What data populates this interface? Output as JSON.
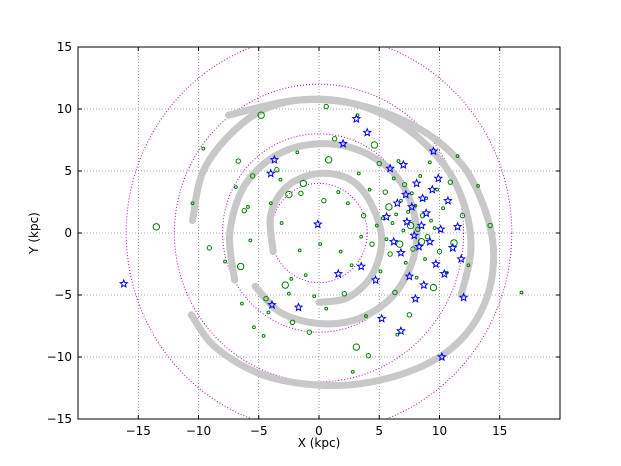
{
  "chart_data": {
    "type": "scatter",
    "title": "",
    "xlabel": "X (kpc)",
    "ylabel": "Y (kpc)",
    "xlim": [
      -20,
      20
    ],
    "ylim": [
      -15,
      15
    ],
    "grid": true,
    "x_ticks": [
      -15,
      -10,
      -5,
      0,
      5,
      10,
      15
    ],
    "y_ticks": [
      -15,
      -10,
      -5,
      0,
      5,
      10,
      15
    ],
    "colors": {
      "circles": "#008000",
      "stars": "#0000ff",
      "arms": "#c8c8c8",
      "dotted_rings": "#c000c0",
      "grid": "#555555"
    },
    "dotted_rings_radius_kpc": [
      4,
      8,
      12,
      16
    ],
    "spiral_arms": [
      [
        [
          -10.5,
          1
        ],
        [
          -9.6,
          5
        ],
        [
          -7,
          8.3
        ],
        [
          -4,
          10.2
        ],
        [
          0,
          10.8
        ],
        [
          4,
          10.1
        ],
        [
          7.6,
          8.2
        ],
        [
          10.6,
          5.2
        ],
        [
          12.2,
          1.8
        ],
        [
          12.6,
          -1.5
        ],
        [
          11.8,
          -5
        ]
      ],
      [
        [
          -7.5,
          9.5
        ],
        [
          -2,
          10.7
        ],
        [
          3,
          10.4
        ],
        [
          8,
          8.6
        ],
        [
          11.8,
          5.6
        ],
        [
          13.8,
          1.8
        ],
        [
          14.5,
          -2
        ],
        [
          13.6,
          -6
        ],
        [
          11,
          -9.3
        ],
        [
          6.8,
          -11.4
        ],
        [
          1.5,
          -12.3
        ],
        [
          -4.2,
          -11.6
        ],
        [
          -8.5,
          -9.3
        ],
        [
          -10.6,
          -6.6
        ]
      ],
      [
        [
          -7,
          -3.8
        ],
        [
          -7.4,
          0
        ],
        [
          -6.2,
          3.8
        ],
        [
          -3.5,
          6.3
        ],
        [
          0,
          7.2
        ],
        [
          3.5,
          6.6
        ],
        [
          6.4,
          4.6
        ],
        [
          7.9,
          1.5
        ],
        [
          7.9,
          -1.8
        ],
        [
          6.2,
          -5
        ],
        [
          3.3,
          -6.9
        ],
        [
          0,
          -7.3
        ],
        [
          -3.2,
          -6.4
        ],
        [
          -5.3,
          -4.3
        ]
      ],
      [
        [
          -3.8,
          -1.5
        ],
        [
          -4,
          1.5
        ],
        [
          -2.6,
          3.8
        ],
        [
          0,
          4.8
        ],
        [
          2.6,
          4.3
        ],
        [
          4.3,
          2.4
        ],
        [
          5.2,
          -0.5
        ],
        [
          4.4,
          -3.4
        ],
        [
          2.4,
          -5.2
        ],
        [
          0,
          -5.6
        ]
      ]
    ],
    "series": [
      {
        "marker": "circle",
        "points": [
          [
            -13.5,
            0.5
          ],
          [
            -10.5,
            2.4
          ],
          [
            -9.6,
            6.8
          ],
          [
            -9.1,
            -1.2
          ],
          [
            -7.8,
            -2.3
          ],
          [
            -6.9,
            3.7
          ],
          [
            -6.7,
            5.8
          ],
          [
            -6.5,
            -2.7
          ],
          [
            -6.4,
            -5.7
          ],
          [
            -6.2,
            1.8
          ],
          [
            -5.9,
            2.1
          ],
          [
            -5.7,
            -0.6
          ],
          [
            -5.5,
            4.6
          ],
          [
            -5.4,
            -7.6
          ],
          [
            -4.8,
            9.5
          ],
          [
            -4.4,
            -5.3
          ],
          [
            -4.2,
            -6.4
          ],
          [
            -4.0,
            2.4
          ],
          [
            -3.5,
            5.1
          ],
          [
            -3.2,
            4.3
          ],
          [
            -3.1,
            0.8
          ],
          [
            -2.8,
            -4.2
          ],
          [
            -2.5,
            -4.9
          ],
          [
            -2.3,
            -3.7
          ],
          [
            -2.2,
            -7.2
          ],
          [
            -1.8,
            6.5
          ],
          [
            -1.6,
            -1.4
          ],
          [
            -1.5,
            3.2
          ],
          [
            -1.3,
            4.0
          ],
          [
            -1.1,
            -3.4
          ],
          [
            -0.8,
            -8.0
          ],
          [
            -0.4,
            -5.1
          ],
          [
            0.1,
            -0.9
          ],
          [
            0.4,
            2.6
          ],
          [
            0.6,
            -6.1
          ],
          [
            0.8,
            5.9
          ],
          [
            1.3,
            7.6
          ],
          [
            1.6,
            3.3
          ],
          [
            1.8,
            -1.5
          ],
          [
            2.1,
            -4.9
          ],
          [
            2.4,
            2.4
          ],
          [
            2.7,
            -2.6
          ],
          [
            3.1,
            -9.2
          ],
          [
            3.3,
            4.8
          ],
          [
            3.5,
            -0.3
          ],
          [
            3.7,
            1.4
          ],
          [
            3.9,
            -6.7
          ],
          [
            4.2,
            3.5
          ],
          [
            4.4,
            -0.9
          ],
          [
            4.6,
            7.1
          ],
          [
            4.8,
            0.6
          ],
          [
            5.0,
            5.6
          ],
          [
            5.1,
            -3.1
          ],
          [
            5.3,
            1.2
          ],
          [
            5.5,
            3.3
          ],
          [
            5.6,
            -0.5
          ],
          [
            5.8,
            2.1
          ],
          [
            5.9,
            -1.7
          ],
          [
            6.1,
            0.8
          ],
          [
            6.2,
            4.4
          ],
          [
            6.3,
            -4.8
          ],
          [
            6.4,
            1.5
          ],
          [
            6.6,
            5.8
          ],
          [
            6.7,
            -0.9
          ],
          [
            6.8,
            2.6
          ],
          [
            7.0,
            0.2
          ],
          [
            7.1,
            3.9
          ],
          [
            7.2,
            -2.4
          ],
          [
            7.4,
            1.7
          ],
          [
            7.5,
            -6.6
          ],
          [
            7.6,
            0.6
          ],
          [
            7.7,
            3.2
          ],
          [
            7.8,
            -1.3
          ],
          [
            8.0,
            2.2
          ],
          [
            8.1,
            -3.6
          ],
          [
            8.2,
            0.3
          ],
          [
            8.4,
            4.6
          ],
          [
            8.5,
            -0.7
          ],
          [
            8.6,
            1.4
          ],
          [
            8.8,
            -2.1
          ],
          [
            8.9,
            2.8
          ],
          [
            9.0,
            -0.3
          ],
          [
            9.2,
            5.7
          ],
          [
            9.3,
            1.0
          ],
          [
            9.5,
            -4.4
          ],
          [
            9.6,
            0.4
          ],
          [
            9.8,
            3.5
          ],
          [
            10.0,
            -1.5
          ],
          [
            10.3,
            2.0
          ],
          [
            10.6,
            -3.2
          ],
          [
            10.9,
            4.1
          ],
          [
            11.2,
            -0.8
          ],
          [
            11.5,
            6.2
          ],
          [
            11.9,
            1.4
          ],
          [
            12.4,
            -2.6
          ],
          [
            13.2,
            3.8
          ],
          [
            14.2,
            0.6
          ],
          [
            16.8,
            -4.8
          ],
          [
            -2.5,
            3.1
          ],
          [
            0.6,
            10.2
          ],
          [
            3.2,
            9.5
          ],
          [
            -4.6,
            -8.3
          ],
          [
            4.1,
            -9.9
          ],
          [
            6.5,
            -8.2
          ],
          [
            2.8,
            -11.2
          ]
        ]
      },
      {
        "marker": "star",
        "points": [
          [
            -16.2,
            -4.1
          ],
          [
            -4.0,
            4.8
          ],
          [
            -3.9,
            -5.8
          ],
          [
            -3.7,
            5.9
          ],
          [
            -1.7,
            -6.0
          ],
          [
            -0.1,
            0.7
          ],
          [
            1.6,
            -3.3
          ],
          [
            2.0,
            7.2
          ],
          [
            3.1,
            9.2
          ],
          [
            3.5,
            -2.7
          ],
          [
            4.0,
            8.1
          ],
          [
            4.7,
            -3.8
          ],
          [
            5.2,
            -6.9
          ],
          [
            5.6,
            1.3
          ],
          [
            5.9,
            5.2
          ],
          [
            6.2,
            -0.7
          ],
          [
            6.5,
            2.4
          ],
          [
            6.8,
            -1.6
          ],
          [
            7.0,
            5.5
          ],
          [
            7.3,
            0.9
          ],
          [
            7.5,
            -3.5
          ],
          [
            7.7,
            2.1
          ],
          [
            7.9,
            -0.2
          ],
          [
            8.1,
            4.0
          ],
          [
            8.3,
            -1.1
          ],
          [
            8.5,
            0.6
          ],
          [
            8.7,
            -4.2
          ],
          [
            8.9,
            1.6
          ],
          [
            9.2,
            -0.7
          ],
          [
            9.4,
            3.5
          ],
          [
            9.7,
            -2.5
          ],
          [
            9.9,
            4.4
          ],
          [
            10.1,
            0.3
          ],
          [
            10.4,
            -3.3
          ],
          [
            10.7,
            2.6
          ],
          [
            11.1,
            -1.2
          ],
          [
            11.5,
            0.5
          ],
          [
            11.8,
            -2.1
          ],
          [
            6.8,
            -7.9
          ],
          [
            10.2,
            -10.0
          ],
          [
            8.0,
            -5.3
          ],
          [
            9.5,
            6.6
          ],
          [
            12.0,
            -5.2
          ],
          [
            7.2,
            3.1
          ],
          [
            8.6,
            2.8
          ]
        ]
      }
    ]
  }
}
